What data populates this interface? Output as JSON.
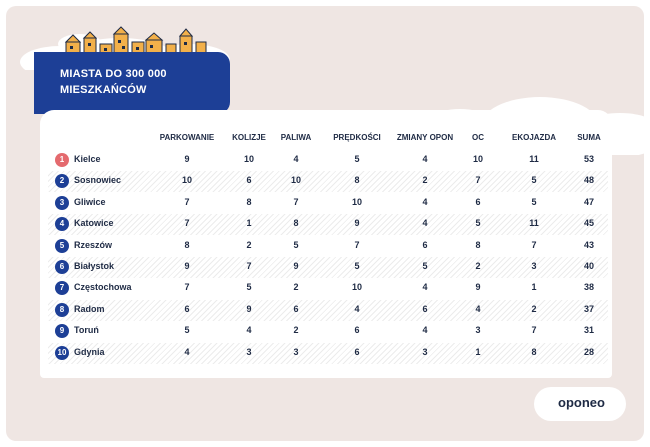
{
  "banner": {
    "title": "MIASTA DO 300 000 MIESZKAŃCÓW"
  },
  "columns": [
    "PARKOWANIE",
    "KOLIZJE",
    "PALIWA",
    "PRĘDKOŚCI",
    "ZMIANY OPON",
    "OC",
    "EKOJAZDA",
    "SUMA"
  ],
  "rows": [
    {
      "rank": "1",
      "city": "Kielce",
      "values": [
        "9",
        "10",
        "4",
        "5",
        "4",
        "10",
        "11",
        "53"
      ]
    },
    {
      "rank": "2",
      "city": "Sosnowiec",
      "values": [
        "10",
        "6",
        "10",
        "8",
        "2",
        "7",
        "5",
        "48"
      ]
    },
    {
      "rank": "3",
      "city": "Gliwice",
      "values": [
        "7",
        "8",
        "7",
        "10",
        "4",
        "6",
        "5",
        "47"
      ]
    },
    {
      "rank": "4",
      "city": "Katowice",
      "values": [
        "7",
        "1",
        "8",
        "9",
        "4",
        "5",
        "11",
        "45"
      ]
    },
    {
      "rank": "5",
      "city": "Rzeszów",
      "values": [
        "8",
        "2",
        "5",
        "7",
        "6",
        "8",
        "7",
        "43"
      ]
    },
    {
      "rank": "6",
      "city": "Białystok",
      "values": [
        "9",
        "7",
        "9",
        "5",
        "5",
        "2",
        "3",
        "40"
      ]
    },
    {
      "rank": "7",
      "city": "Częstochowa",
      "values": [
        "7",
        "5",
        "2",
        "10",
        "4",
        "9",
        "1",
        "38"
      ]
    },
    {
      "rank": "8",
      "city": "Radom",
      "values": [
        "6",
        "9",
        "6",
        "4",
        "6",
        "4",
        "2",
        "37"
      ]
    },
    {
      "rank": "9",
      "city": "Toruń",
      "values": [
        "5",
        "4",
        "2",
        "6",
        "4",
        "3",
        "7",
        "31"
      ]
    },
    {
      "rank": "10",
      "city": "Gdynia",
      "values": [
        "4",
        "3",
        "3",
        "6",
        "3",
        "1",
        "8",
        "28"
      ]
    }
  ],
  "logo": {
    "text": "oponeo"
  },
  "colors": {
    "navy": "#1d3f96",
    "accent_red": "#e46a6e",
    "background": "#efe6e3",
    "houses": "#f2b04a"
  }
}
